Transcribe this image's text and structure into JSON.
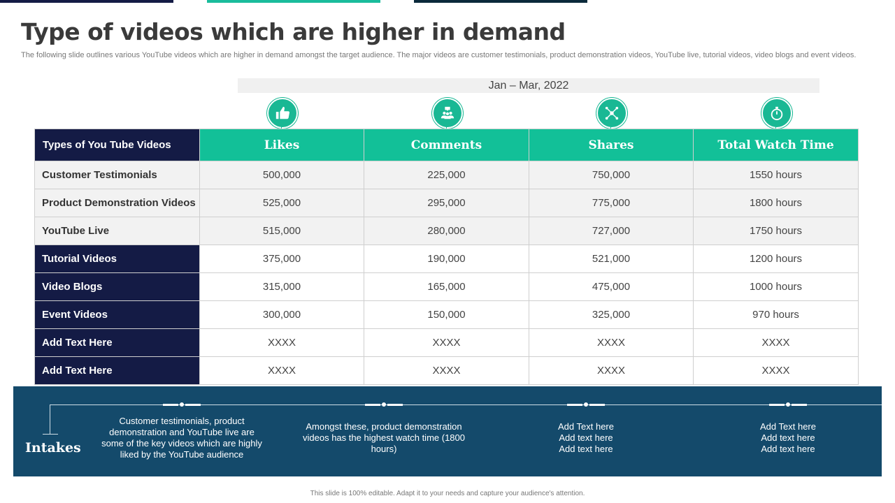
{
  "title": "Type of videos which are higher in demand",
  "subtitle": "The following slide outlines various YouTube videos which are higher in demand amongst the target audience. The major videos are customer testimonials, product demonstration videos, YouTube live, tutorial videos, video blogs and event videos.",
  "period": "Jan – Mar, 2022",
  "icons": [
    "thumbs-up-icon",
    "group-comments-icon",
    "share-network-icon",
    "stopwatch-icon"
  ],
  "colors": {
    "navy": "#141b45",
    "teal": "#12c098",
    "panel": "#144a6b"
  },
  "table": {
    "corner_label": "Types of You Tube Videos",
    "columns": [
      "Likes",
      "Comments",
      "Shares",
      "Total Watch Time"
    ],
    "rows": [
      {
        "label": "Customer Testimonials",
        "values": [
          "500,000",
          "225,000",
          "750,000",
          "1550 hours"
        ]
      },
      {
        "label": "Product Demonstration Videos",
        "values": [
          "525,000",
          "295,000",
          "775,000",
          "1800 hours"
        ]
      },
      {
        "label": "YouTube Live",
        "values": [
          "515,000",
          "280,000",
          "727,000",
          "1750 hours"
        ]
      },
      {
        "label": "Tutorial Videos",
        "values": [
          "375,000",
          "190,000",
          "521,000",
          "1200 hours"
        ]
      },
      {
        "label": "Video Blogs",
        "values": [
          "315,000",
          "165,000",
          "475,000",
          "1000 hours"
        ]
      },
      {
        "label": "Event Videos",
        "values": [
          "300,000",
          "150,000",
          "325,000",
          "970 hours"
        ]
      },
      {
        "label": "Add  Text Here",
        "values": [
          "XXXX",
          "XXXX",
          "XXXX",
          "XXXX"
        ]
      },
      {
        "label": "Add  Text Here",
        "values": [
          "XXXX",
          "XXXX",
          "XXXX",
          "XXXX"
        ]
      }
    ]
  },
  "intakes": {
    "label": "Intakes",
    "notes": [
      "Customer testimonials, product demonstration and YouTube live are some of the key videos which are highly liked by the YouTube audience",
      "Amongst these, product demonstration videos has the highest watch time (1800 hours)",
      "Add Text here\nAdd text here\nAdd text here",
      "Add Text here\nAdd text here\nAdd text here"
    ]
  },
  "footer": "This slide is 100% editable. Adapt it to your needs and capture your audience's attention."
}
